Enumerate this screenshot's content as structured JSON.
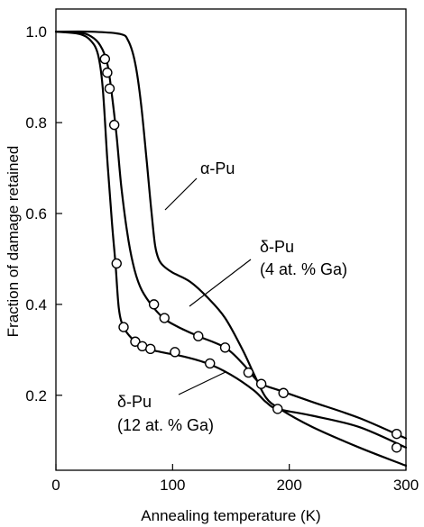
{
  "chart_data": {
    "type": "line",
    "title": "",
    "xlabel": "Annealing temperature (K)",
    "ylabel": "Fraction of damage retained",
    "xlim": [
      0,
      300
    ],
    "ylim": [
      0.035,
      1.05
    ],
    "x_ticks": [
      "0",
      "100",
      "200",
      "300"
    ],
    "y_ticks": [
      "0.2",
      "0.4",
      "0.6",
      "0.8",
      "1.0"
    ],
    "x_tick_values": [
      0,
      100,
      200,
      300
    ],
    "y_tick_values": [
      0.2,
      0.4,
      0.6,
      0.8,
      1.0
    ],
    "grid": false,
    "series": [
      {
        "name": "α-Pu",
        "label_lines": [
          "α-Pu"
        ],
        "curve": [
          [
            0,
            1.0
          ],
          [
            30,
            1.0
          ],
          [
            55,
            0.995
          ],
          [
            62,
            0.98
          ],
          [
            68,
            0.93
          ],
          [
            73,
            0.84
          ],
          [
            78,
            0.71
          ],
          [
            82,
            0.6
          ],
          [
            85,
            0.53
          ],
          [
            88,
            0.5
          ],
          [
            92,
            0.485
          ],
          [
            100,
            0.47
          ],
          [
            115,
            0.45
          ],
          [
            130,
            0.415
          ],
          [
            145,
            0.37
          ],
          [
            160,
            0.3
          ],
          [
            170,
            0.245
          ],
          [
            180,
            0.195
          ],
          [
            192,
            0.17
          ],
          [
            220,
            0.13
          ],
          [
            260,
            0.085
          ],
          [
            300,
            0.045
          ]
        ],
        "points": []
      },
      {
        "name": "δ-Pu (4 at. % Ga)",
        "label_lines": [
          "δ-Pu",
          "(4 at. % Ga)"
        ],
        "curve": [
          [
            0,
            1.0
          ],
          [
            20,
            0.998
          ],
          [
            30,
            0.99
          ],
          [
            38,
            0.97
          ],
          [
            44,
            0.93
          ],
          [
            48,
            0.86
          ],
          [
            52,
            0.77
          ],
          [
            56,
            0.66
          ],
          [
            61,
            0.56
          ],
          [
            66,
            0.49
          ],
          [
            72,
            0.44
          ],
          [
            80,
            0.405
          ],
          [
            92,
            0.37
          ],
          [
            105,
            0.35
          ],
          [
            122,
            0.33
          ],
          [
            145,
            0.305
          ],
          [
            160,
            0.27
          ],
          [
            168,
            0.245
          ],
          [
            176,
            0.225
          ],
          [
            190,
            0.212
          ],
          [
            220,
            0.185
          ],
          [
            260,
            0.15
          ],
          [
            300,
            0.105
          ]
        ],
        "points": [
          [
            42,
            0.94
          ],
          [
            44,
            0.91
          ],
          [
            46,
            0.875
          ],
          [
            50,
            0.795
          ],
          [
            84,
            0.4
          ],
          [
            93,
            0.37
          ],
          [
            122,
            0.33
          ],
          [
            145,
            0.305
          ],
          [
            165,
            0.25
          ],
          [
            176,
            0.225
          ],
          [
            195,
            0.205
          ],
          [
            292,
            0.115
          ]
        ]
      },
      {
        "name": "δ-Pu (12 at. % Ga)",
        "label_lines": [
          "δ-Pu",
          "(12 at. % Ga)"
        ],
        "curve": [
          [
            0,
            1.0
          ],
          [
            20,
            0.995
          ],
          [
            30,
            0.98
          ],
          [
            36,
            0.95
          ],
          [
            40,
            0.88
          ],
          [
            44,
            0.72
          ],
          [
            48,
            0.58
          ],
          [
            51,
            0.49
          ],
          [
            54,
            0.39
          ],
          [
            58,
            0.35
          ],
          [
            65,
            0.325
          ],
          [
            75,
            0.305
          ],
          [
            90,
            0.295
          ],
          [
            110,
            0.285
          ],
          [
            130,
            0.27
          ],
          [
            150,
            0.245
          ],
          [
            170,
            0.21
          ],
          [
            180,
            0.185
          ],
          [
            190,
            0.17
          ],
          [
            220,
            0.155
          ],
          [
            260,
            0.13
          ],
          [
            300,
            0.085
          ]
        ],
        "points": [
          [
            52,
            0.49
          ],
          [
            58,
            0.35
          ],
          [
            68,
            0.318
          ],
          [
            74,
            0.308
          ],
          [
            81,
            0.302
          ],
          [
            102,
            0.295
          ],
          [
            132,
            0.27
          ],
          [
            190,
            0.17
          ],
          [
            292,
            0.085
          ]
        ]
      }
    ]
  }
}
